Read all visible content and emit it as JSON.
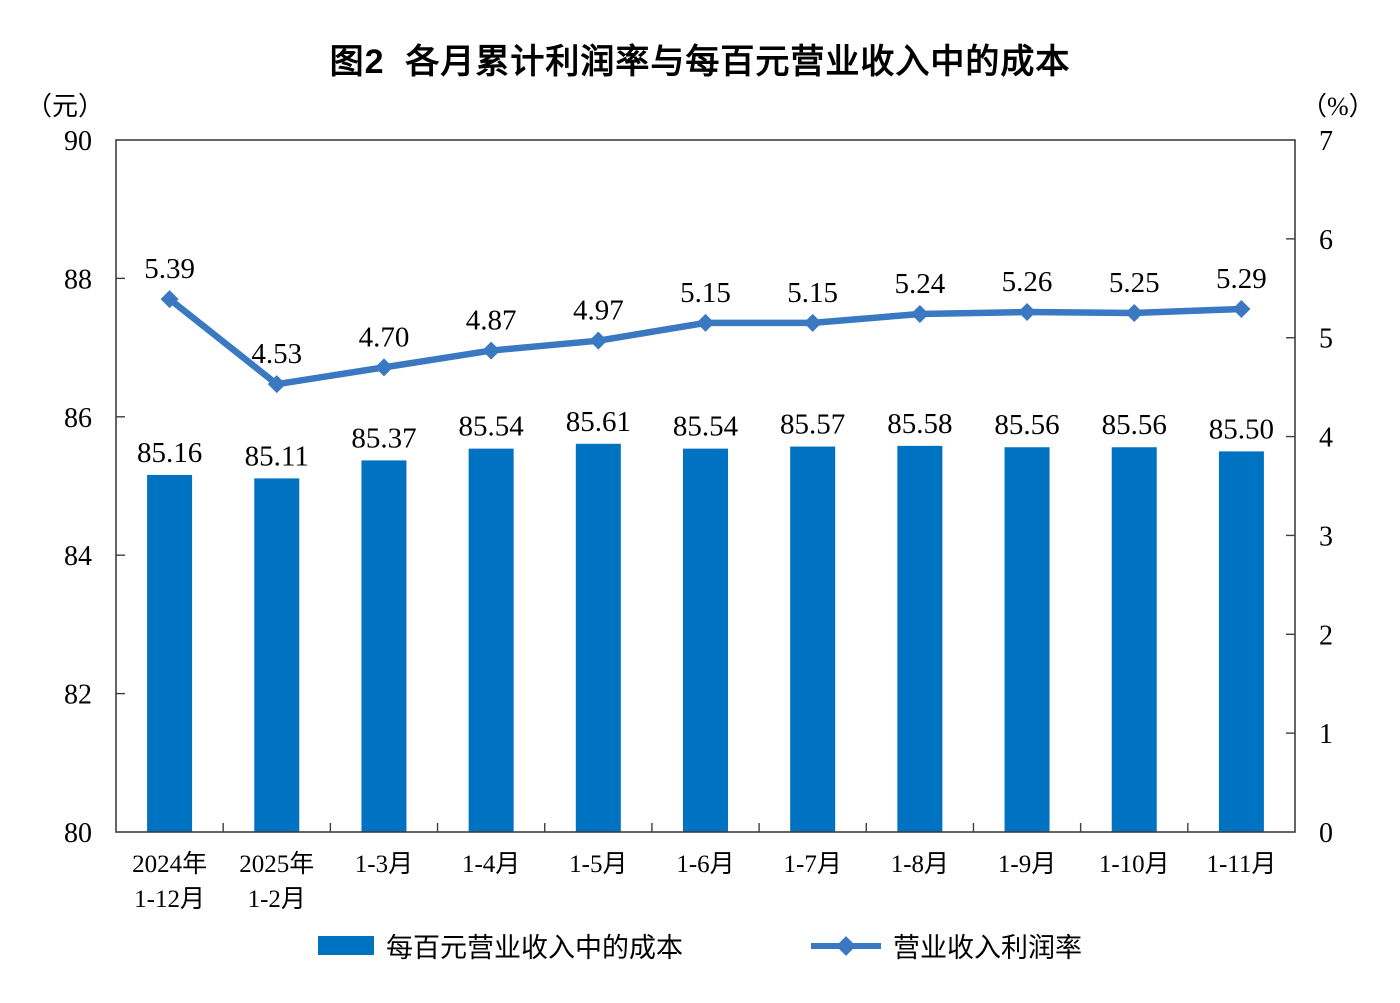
{
  "title": "图2  各月累计利润率与每百元营业收入中的成本",
  "left_axis_unit": "（元）",
  "right_axis_unit": "（%）",
  "legend": {
    "bars_label": "每百元营业收入中的成本",
    "line_label": "营业收入利润率"
  },
  "colors": {
    "bar": "#0072C2",
    "line": "#3A78C2",
    "axis": "#3f3f3f",
    "text": "#000000"
  },
  "chart_data": {
    "type": "bar+line combo",
    "title": "图2 各月累计利润率与每百元营业收入中的成本",
    "categories": [
      [
        "2024年",
        "1-12月"
      ],
      [
        "2025年",
        "1-2月"
      ],
      [
        "1-3月"
      ],
      [
        "1-4月"
      ],
      [
        "1-5月"
      ],
      [
        "1-6月"
      ],
      [
        "1-7月"
      ],
      [
        "1-8月"
      ],
      [
        "1-9月"
      ],
      [
        "1-10月"
      ],
      [
        "1-11月"
      ]
    ],
    "series": [
      {
        "name": "每百元营业收入中的成本",
        "type": "bar",
        "axis": "left",
        "unit": "元",
        "values": [
          85.16,
          85.11,
          85.37,
          85.54,
          85.61,
          85.54,
          85.57,
          85.58,
          85.56,
          85.56,
          85.5
        ]
      },
      {
        "name": "营业收入利润率",
        "type": "line",
        "axis": "right",
        "unit": "%",
        "values": [
          5.39,
          4.53,
          4.7,
          4.87,
          4.97,
          5.15,
          5.15,
          5.24,
          5.26,
          5.25,
          5.29
        ]
      }
    ],
    "left_axis": {
      "label": "（元）",
      "min": 80,
      "max": 90,
      "ticks": [
        80,
        82,
        84,
        86,
        88,
        90
      ]
    },
    "right_axis": {
      "label": "（%）",
      "min": 0,
      "max": 7,
      "ticks": [
        0,
        1,
        2,
        3,
        4,
        5,
        6,
        7
      ]
    },
    "grid": false,
    "data_labels": true,
    "legend_position": "bottom"
  }
}
